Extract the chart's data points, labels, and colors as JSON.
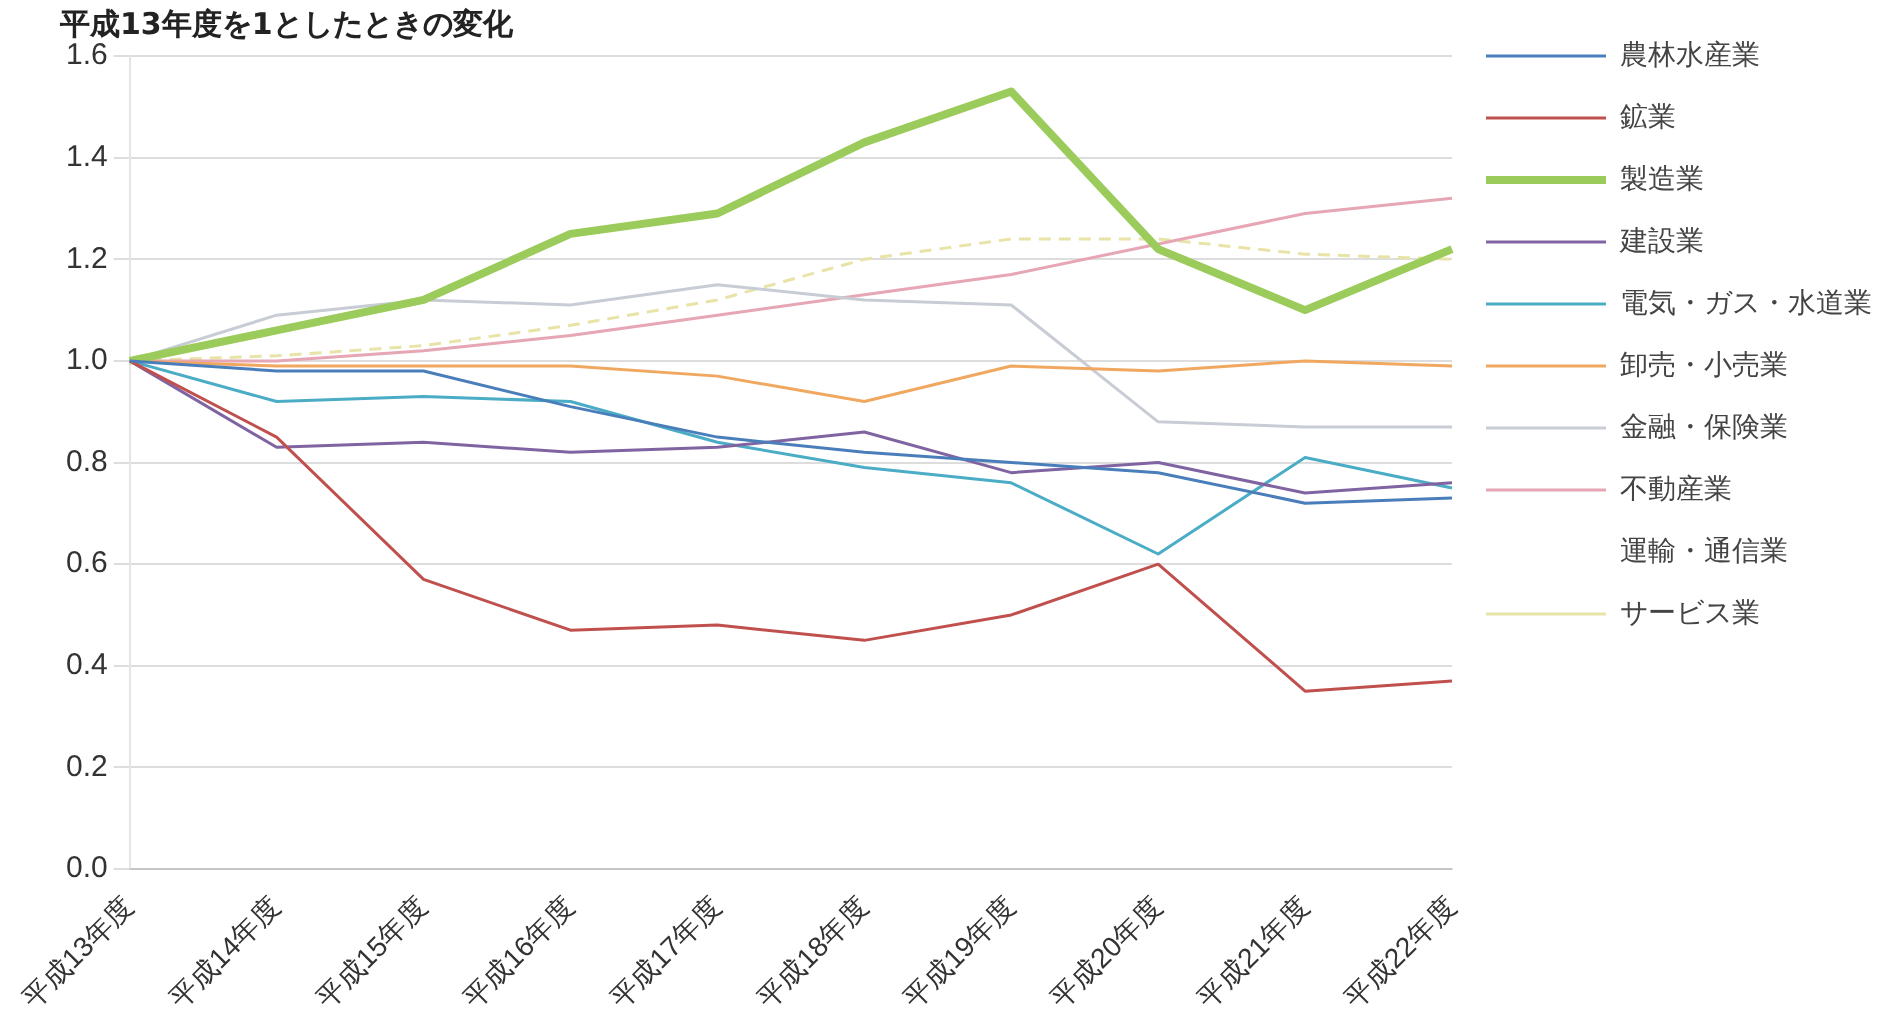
{
  "chart_data": {
    "type": "line",
    "ylabel": "平成13年度を1としたときの変化",
    "categories": [
      "平成13年度",
      "平成14年度",
      "平成15年度",
      "平成16年度",
      "平成17年度",
      "平成18年度",
      "平成19年度",
      "平成20年度",
      "平成21年度",
      "平成22年度"
    ],
    "series": [
      {
        "name": "農林水産業",
        "color": "#4a7ebb",
        "values": [
          1.0,
          0.98,
          0.98,
          0.91,
          0.85,
          0.82,
          0.8,
          0.78,
          0.72,
          0.73
        ]
      },
      {
        "name": "鉱業",
        "color": "#c0504d",
        "values": [
          1.0,
          0.85,
          0.57,
          0.47,
          0.48,
          0.45,
          0.5,
          0.6,
          0.35,
          0.37
        ]
      },
      {
        "name": "製造業",
        "color": "#9bcb5a",
        "values": [
          1.0,
          1.06,
          1.12,
          1.25,
          1.29,
          1.43,
          1.53,
          1.22,
          1.1,
          1.22
        ]
      },
      {
        "name": "建設業",
        "color": "#8064a2",
        "values": [
          1.0,
          0.83,
          0.84,
          0.82,
          0.83,
          0.86,
          0.78,
          0.8,
          0.74,
          0.76
        ]
      },
      {
        "name": "電気・ガス・水道業",
        "color": "#4bacc6",
        "values": [
          1.0,
          0.92,
          0.93,
          0.92,
          0.84,
          0.79,
          0.76,
          0.62,
          0.81,
          0.75
        ]
      },
      {
        "name": "卸売・小売業",
        "color": "#f0a860",
        "values": [
          1.0,
          0.99,
          0.99,
          0.99,
          0.97,
          0.92,
          0.99,
          0.98,
          1.0,
          0.99
        ]
      },
      {
        "name": "金融・保険業",
        "color": "#c8ccd4",
        "values": [
          1.0,
          1.09,
          1.12,
          1.11,
          1.15,
          1.12,
          1.11,
          0.88,
          0.87,
          0.87
        ]
      },
      {
        "name": "不動産業",
        "color": "#e6a6b4",
        "values": [
          1.0,
          1.0,
          1.02,
          1.05,
          1.09,
          1.13,
          1.17,
          1.23,
          1.29,
          1.32
        ]
      },
      {
        "name": "運輸・通信業",
        "values": [
          null,
          null,
          null,
          null,
          null,
          null,
          null,
          null,
          null,
          null
        ]
      },
      {
        "name": "サービス業",
        "color": "#e8e4a8",
        "line_style": "dashed",
        "values": [
          1.0,
          1.01,
          1.03,
          1.07,
          1.12,
          1.2,
          1.24,
          1.24,
          1.21,
          1.2
        ]
      }
    ],
    "ylim": [
      0,
      1.6
    ],
    "yticks": [
      {
        "value": 0,
        "label": "0.0"
      },
      {
        "value": 0.2,
        "label": "0.2"
      },
      {
        "value": 0.4,
        "label": "0.4"
      },
      {
        "value": 0.6,
        "label": "0.6"
      },
      {
        "value": 0.8,
        "label": "0.8"
      },
      {
        "value": 1,
        "label": "1.0"
      },
      {
        "value": 1.2,
        "label": "1.2"
      },
      {
        "value": 1.4,
        "label": "1.4"
      },
      {
        "value": 1.6,
        "label": "1.6"
      }
    ],
    "grid": "y",
    "legend": "right",
    "marker": "none",
    "line_style": "solid"
  }
}
